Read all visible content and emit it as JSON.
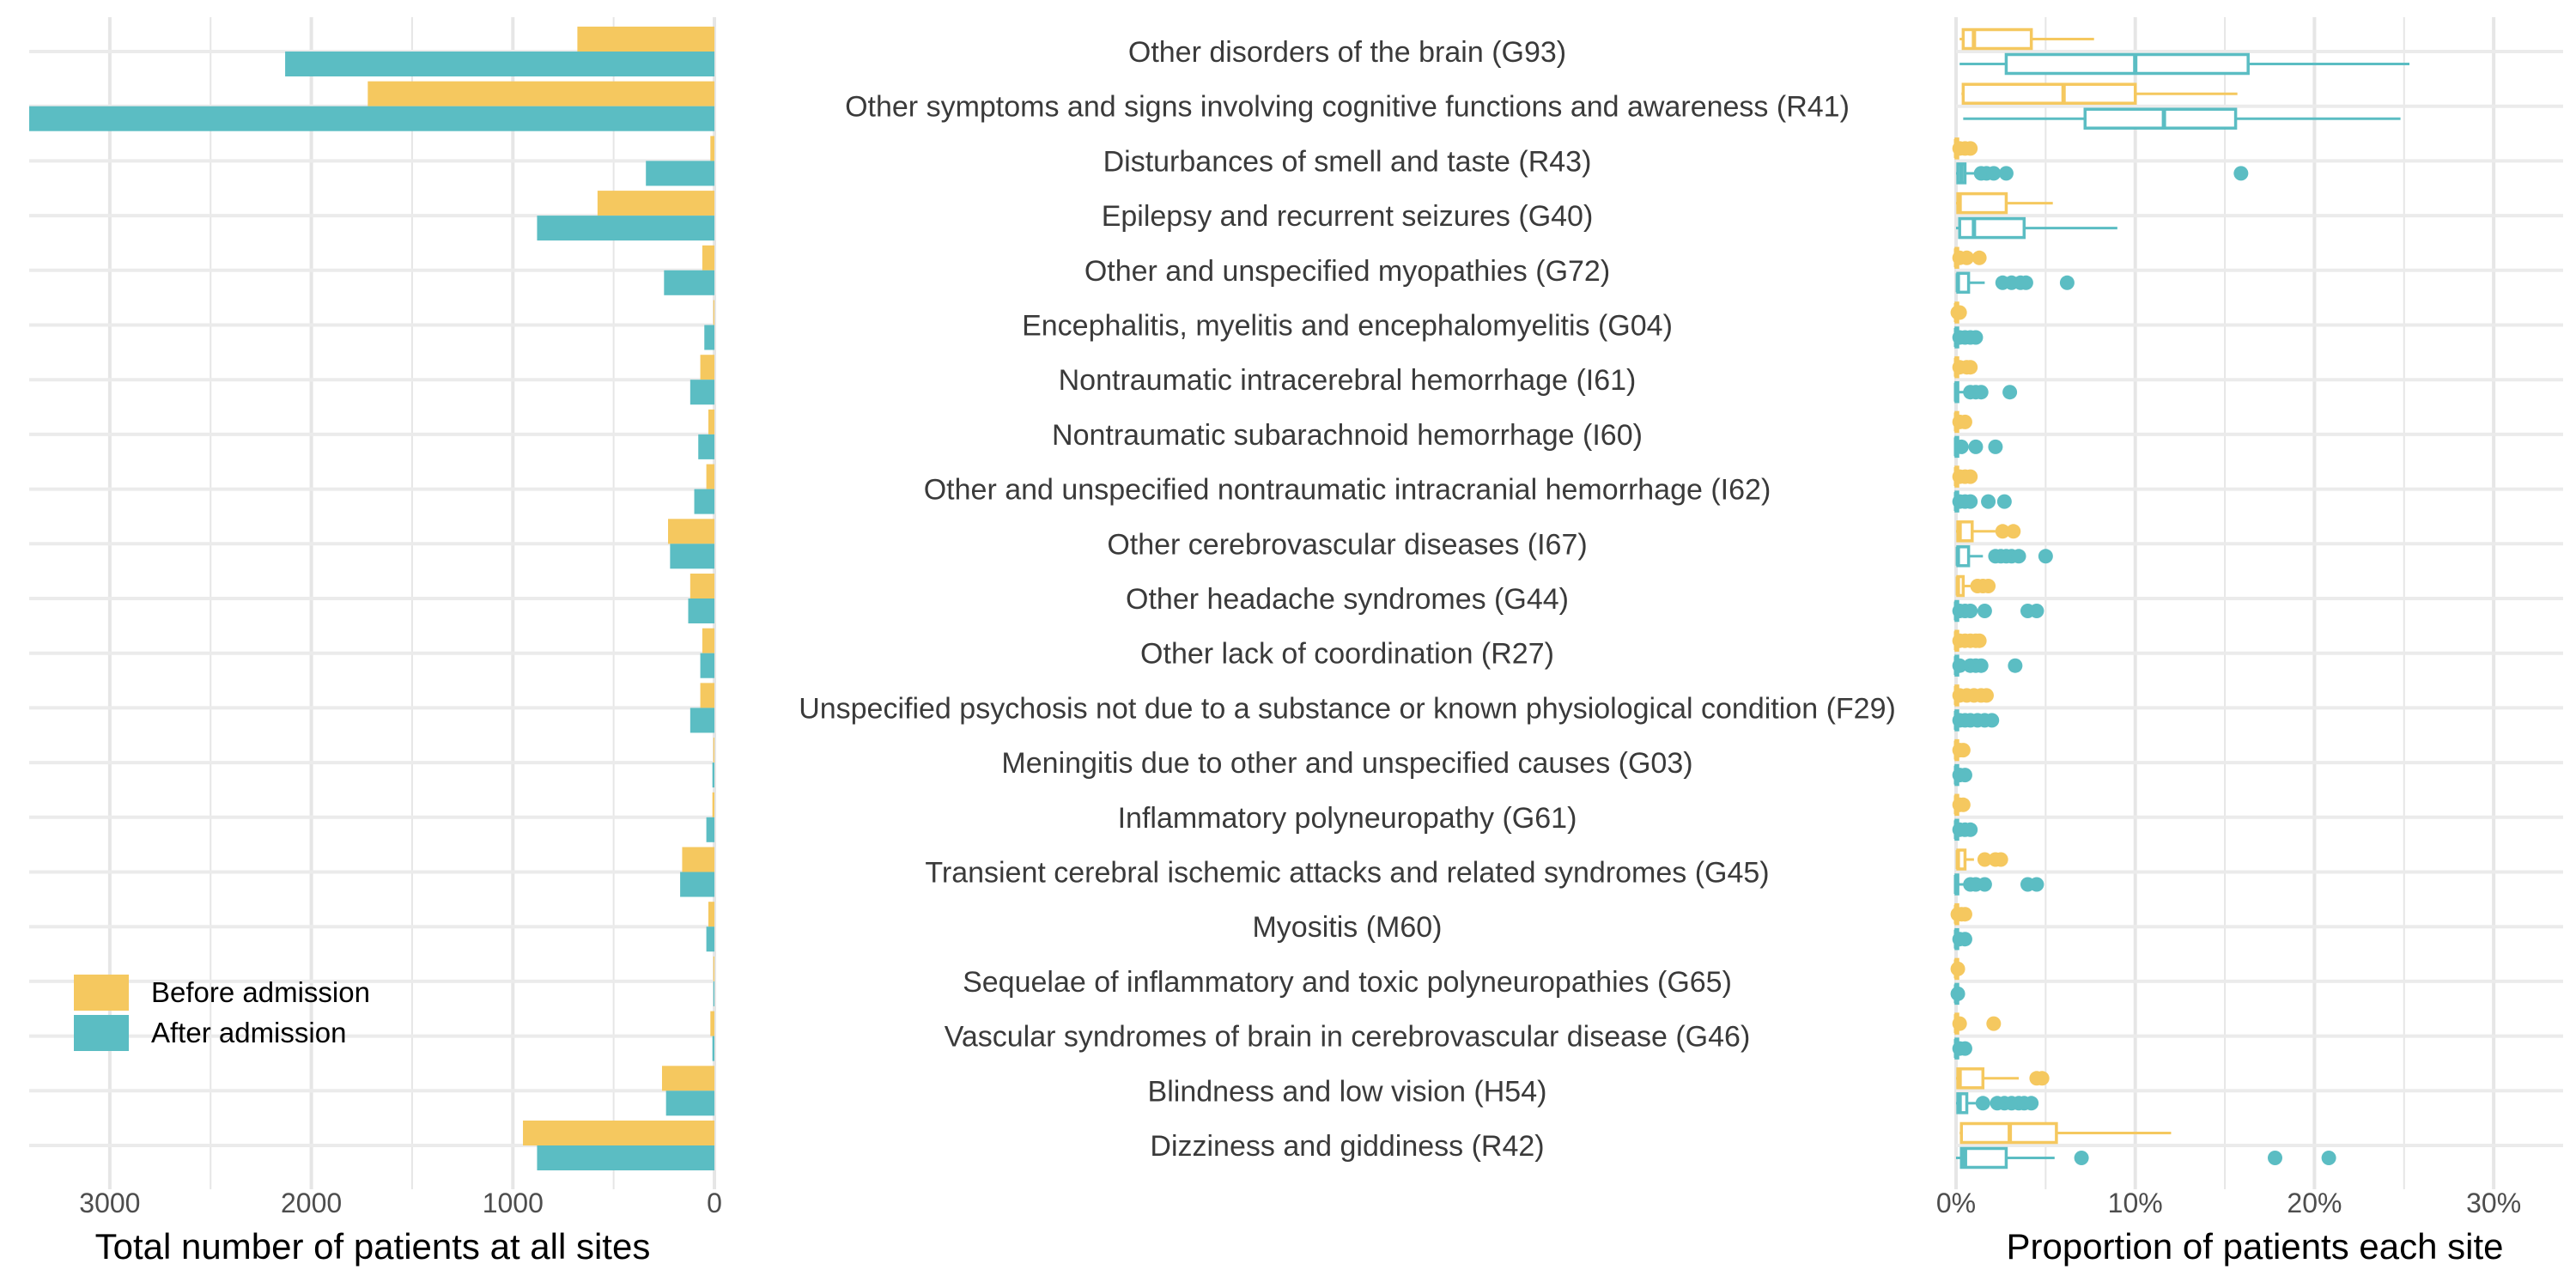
{
  "chart_data": [
    {
      "type": "bar",
      "orientation": "horizontal",
      "x_reversed": true,
      "xlabel": "Total number of patients at all sites",
      "xlim": [
        0,
        3400
      ],
      "xticks": [
        3000,
        2000,
        1000,
        0
      ],
      "categories": [
        "Other disorders of the brain (G93)",
        "Other symptoms and signs involving cognitive functions and awareness (R41)",
        "Disturbances of smell and taste (R43)",
        "Epilepsy and recurrent seizures (G40)",
        "Other and unspecified myopathies (G72)",
        "Encephalitis, myelitis and encephalomyelitis (G04)",
        "Nontraumatic intracerebral hemorrhage (I61)",
        "Nontraumatic subarachnoid hemorrhage (I60)",
        "Other and unspecified nontraumatic intracranial hemorrhage (I62)",
        "Other cerebrovascular diseases (I67)",
        "Other headache syndromes (G44)",
        "Other lack of coordination (R27)",
        "Unspecified psychosis not due to a substance or known physiological condition (F29)",
        "Meningitis due to other and unspecified causes (G03)",
        "Inflammatory polyneuropathy (G61)",
        "Transient cerebral ischemic attacks and related syndromes (G45)",
        "Myositis (M60)",
        "Sequelae of inflammatory and toxic polyneuropathies (G65)",
        "Vascular syndromes of brain in cerebrovascular disease (G46)",
        "Blindness and low vision (H54)",
        "Dizziness and giddiness (R42)"
      ],
      "series": [
        {
          "name": "Before admission",
          "color": "#F5C85F",
          "values": [
            680,
            1720,
            20,
            580,
            60,
            5,
            70,
            30,
            40,
            230,
            120,
            60,
            70,
            5,
            10,
            160,
            30,
            5,
            20,
            260,
            950
          ]
        },
        {
          "name": "After admission",
          "color": "#5BBDC3",
          "values": [
            2130,
            3400,
            340,
            880,
            250,
            50,
            120,
            80,
            100,
            220,
            130,
            70,
            120,
            10,
            40,
            170,
            40,
            5,
            10,
            240,
            880
          ]
        }
      ],
      "legend": "bottom-left"
    },
    {
      "type": "boxplot",
      "orientation": "horizontal",
      "xlabel": "Proportion of patients each site",
      "xlim": [
        0,
        0.31
      ],
      "xticks": [
        0,
        0.1,
        0.2,
        0.3
      ],
      "xticklabels": [
        "0%",
        "10%",
        "20%",
        "30%"
      ],
      "series": [
        {
          "name": "Before admission",
          "color": "#F5C85F",
          "boxes": [
            {
              "min": 0.002,
              "q1": 0.004,
              "median": 0.01,
              "q3": 0.042,
              "max": 0.077,
              "outliers": []
            },
            {
              "min": 0.003,
              "q1": 0.004,
              "median": 0.06,
              "q3": 0.1,
              "max": 0.157,
              "outliers": []
            },
            {
              "min": 0,
              "q1": 0,
              "median": 0,
              "q3": 0,
              "max": 0,
              "outliers": [
                0.002,
                0.005,
                0.008
              ]
            },
            {
              "min": 0,
              "q1": 0.001,
              "median": 0.002,
              "q3": 0.028,
              "max": 0.054,
              "outliers": []
            },
            {
              "min": 0,
              "q1": 0,
              "median": 0,
              "q3": 0,
              "max": 0,
              "outliers": [
                0.002,
                0.006,
                0.013
              ]
            },
            {
              "min": 0,
              "q1": 0,
              "median": 0,
              "q3": 0,
              "max": 0,
              "outliers": [
                0.001,
                0.002
              ]
            },
            {
              "min": 0,
              "q1": 0,
              "median": 0,
              "q3": 0,
              "max": 0,
              "outliers": [
                0.002,
                0.006,
                0.008
              ]
            },
            {
              "min": 0,
              "q1": 0,
              "median": 0,
              "q3": 0,
              "max": 0,
              "outliers": [
                0.002,
                0.005
              ]
            },
            {
              "min": 0,
              "q1": 0,
              "median": 0,
              "q3": 0,
              "max": 0,
              "outliers": [
                0.002,
                0.005,
                0.008
              ]
            },
            {
              "min": 0,
              "q1": 0.001,
              "median": 0.002,
              "q3": 0.009,
              "max": 0.022,
              "outliers": [
                0.026,
                0.032
              ]
            },
            {
              "min": 0,
              "q1": 0.001,
              "median": 0.001,
              "q3": 0.004,
              "max": 0.009,
              "outliers": [
                0.012,
                0.015,
                0.018
              ]
            },
            {
              "min": 0,
              "q1": 0,
              "median": 0,
              "q3": 0,
              "max": 0,
              "outliers": [
                0.002,
                0.005,
                0.008,
                0.011,
                0.013
              ]
            },
            {
              "min": 0,
              "q1": 0,
              "median": 0,
              "q3": 0,
              "max": 0,
              "outliers": [
                0.002,
                0.006,
                0.01,
                0.014,
                0.017
              ]
            },
            {
              "min": 0,
              "q1": 0,
              "median": 0,
              "q3": 0,
              "max": 0,
              "outliers": [
                0.002,
                0.004
              ]
            },
            {
              "min": 0,
              "q1": 0,
              "median": 0,
              "q3": 0,
              "max": 0,
              "outliers": [
                0.002,
                0.004
              ]
            },
            {
              "min": 0,
              "q1": 0.001,
              "median": 0.001,
              "q3": 0.005,
              "max": 0.01,
              "outliers": [
                0.016,
                0.022,
                0.025
              ]
            },
            {
              "min": 0,
              "q1": 0,
              "median": 0,
              "q3": 0,
              "max": 0,
              "outliers": [
                0.001,
                0.003,
                0.005
              ]
            },
            {
              "min": 0,
              "q1": 0,
              "median": 0,
              "q3": 0,
              "max": 0,
              "outliers": [
                0.001
              ]
            },
            {
              "min": 0,
              "q1": 0,
              "median": 0,
              "q3": 0,
              "max": 0,
              "outliers": [
                0.002,
                0.021
              ]
            },
            {
              "min": 0,
              "q1": 0.001,
              "median": 0.002,
              "q3": 0.015,
              "max": 0.035,
              "outliers": [
                0.045,
                0.048
              ]
            },
            {
              "min": 0.002,
              "q1": 0.003,
              "median": 0.03,
              "q3": 0.056,
              "max": 0.12,
              "outliers": []
            }
          ]
        },
        {
          "name": "After admission",
          "color": "#5BBDC3",
          "boxes": [
            {
              "min": 0.002,
              "q1": 0.028,
              "median": 0.1,
              "q3": 0.163,
              "max": 0.253,
              "outliers": []
            },
            {
              "min": 0.004,
              "q1": 0.072,
              "median": 0.116,
              "q3": 0.156,
              "max": 0.248,
              "outliers": []
            },
            {
              "min": 0,
              "q1": 0.001,
              "median": 0.003,
              "q3": 0.005,
              "max": 0.011,
              "outliers": [
                0.014,
                0.017,
                0.021,
                0.028,
                0.159
              ]
            },
            {
              "min": 0,
              "q1": 0.002,
              "median": 0.01,
              "q3": 0.038,
              "max": 0.09,
              "outliers": []
            },
            {
              "min": 0,
              "q1": 0.001,
              "median": 0.001,
              "q3": 0.007,
              "max": 0.016,
              "outliers": [
                0.026,
                0.031,
                0.036,
                0.039,
                0.062
              ]
            },
            {
              "min": 0,
              "q1": 0,
              "median": 0,
              "q3": 0,
              "max": 0,
              "outliers": [
                0.002,
                0.005,
                0.008,
                0.011
              ]
            },
            {
              "min": 0,
              "q1": 0,
              "median": 0,
              "q3": 0.001,
              "max": 0.005,
              "outliers": [
                0.008,
                0.011,
                0.014,
                0.03
              ]
            },
            {
              "min": 0,
              "q1": 0,
              "median": 0,
              "q3": 0,
              "max": 0,
              "outliers": [
                0.003,
                0.011,
                0.022
              ]
            },
            {
              "min": 0,
              "q1": 0,
              "median": 0,
              "q3": 0,
              "max": 0,
              "outliers": [
                0.002,
                0.005,
                0.008,
                0.018,
                0.027
              ]
            },
            {
              "min": 0,
              "q1": 0.001,
              "median": 0.001,
              "q3": 0.007,
              "max": 0.015,
              "outliers": [
                0.022,
                0.025,
                0.028,
                0.031,
                0.035,
                0.05
              ]
            },
            {
              "min": 0,
              "q1": 0,
              "median": 0,
              "q3": 0,
              "max": 0,
              "outliers": [
                0.002,
                0.005,
                0.008,
                0.016,
                0.04,
                0.045
              ]
            },
            {
              "min": 0,
              "q1": 0,
              "median": 0,
              "q3": 0,
              "max": 0,
              "outliers": [
                0.002,
                0.008,
                0.011,
                0.014,
                0.033
              ]
            },
            {
              "min": 0,
              "q1": 0,
              "median": 0,
              "q3": 0,
              "max": 0,
              "outliers": [
                0.002,
                0.005,
                0.008,
                0.012,
                0.016,
                0.02
              ]
            },
            {
              "min": 0,
              "q1": 0,
              "median": 0,
              "q3": 0,
              "max": 0,
              "outliers": [
                0.002,
                0.005
              ]
            },
            {
              "min": 0,
              "q1": 0,
              "median": 0,
              "q3": 0,
              "max": 0,
              "outliers": [
                0.002,
                0.005,
                0.008
              ]
            },
            {
              "min": 0,
              "q1": 0,
              "median": 0,
              "q3": 0.001,
              "max": 0.005,
              "outliers": [
                0.008,
                0.011,
                0.016,
                0.04,
                0.045
              ]
            },
            {
              "min": 0,
              "q1": 0,
              "median": 0,
              "q3": 0,
              "max": 0,
              "outliers": [
                0.002,
                0.005
              ]
            },
            {
              "min": 0,
              "q1": 0,
              "median": 0,
              "q3": 0,
              "max": 0,
              "outliers": [
                0.001
              ]
            },
            {
              "min": 0,
              "q1": 0,
              "median": 0,
              "q3": 0,
              "max": 0,
              "outliers": [
                0.002,
                0.005
              ]
            },
            {
              "min": 0,
              "q1": 0.001,
              "median": 0.002,
              "q3": 0.006,
              "max": 0.011,
              "outliers": [
                0.015,
                0.023,
                0.027,
                0.031,
                0.035,
                0.038,
                0.042
              ]
            },
            {
              "min": 0,
              "q1": 0.003,
              "median": 0.005,
              "q3": 0.028,
              "max": 0.055,
              "outliers": [
                0.07,
                0.178,
                0.208
              ]
            }
          ]
        }
      ]
    }
  ]
}
